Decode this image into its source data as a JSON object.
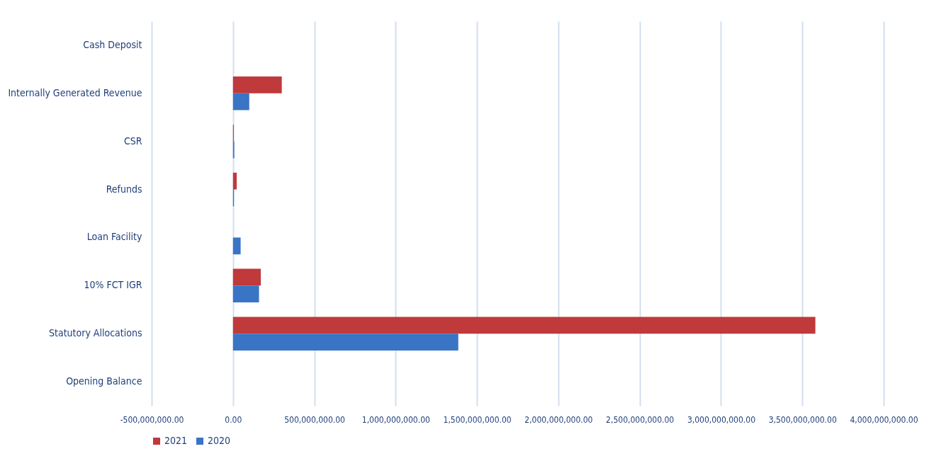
{
  "chart_data": {
    "type": "bar",
    "orientation": "horizontal",
    "categories": [
      "Cash Deposit",
      "Internally Generated Revenue",
      "CSR",
      "Refunds",
      "Loan Facility",
      "10% FCT IGR",
      "Statutory Allocations",
      "Opening Balance"
    ],
    "series": [
      {
        "name": "2021",
        "color": "#c0393b",
        "values": [
          0,
          300000000,
          5000000,
          23000000,
          0,
          171000000,
          3580000000,
          0
        ]
      },
      {
        "name": "2020",
        "color": "#3a74c4",
        "values": [
          0,
          100000000,
          8000000,
          6000000,
          47000000,
          160000000,
          1385000000,
          0
        ]
      }
    ],
    "xlim": [
      -500000000,
      4000000000
    ],
    "xticks": [
      {
        "value": -500000000,
        "label": "-500,000,000.00"
      },
      {
        "value": 0,
        "label": "0.00"
      },
      {
        "value": 500000000,
        "label": "500,000,000.00"
      },
      {
        "value": 1000000000,
        "label": "1,000,000,000.00"
      },
      {
        "value": 1500000000,
        "label": "1,500,000,000.00"
      },
      {
        "value": 2000000000,
        "label": "2,000,000,000.00"
      },
      {
        "value": 2500000000,
        "label": "2,500,000,000.00"
      },
      {
        "value": 3000000000,
        "label": "3,000,000,000.00"
      },
      {
        "value": 3500000000,
        "label": "3,500,000,000.00"
      },
      {
        "value": 4000000000,
        "label": "4,000,000,000.00"
      }
    ],
    "grid": "x",
    "legend": "bottom"
  }
}
